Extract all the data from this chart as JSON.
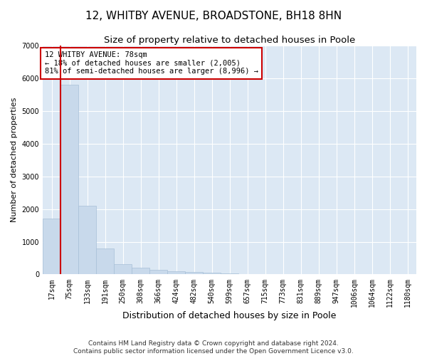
{
  "title1": "12, WHITBY AVENUE, BROADSTONE, BH18 8HN",
  "title2": "Size of property relative to detached houses in Poole",
  "xlabel": "Distribution of detached houses by size in Poole",
  "ylabel": "Number of detached properties",
  "bar_color": "#c8d9eb",
  "bar_edge_color": "#a8c0d8",
  "vline_color": "#cc0000",
  "vline_x": 0.5,
  "categories": [
    "17sqm",
    "75sqm",
    "133sqm",
    "191sqm",
    "250sqm",
    "308sqm",
    "366sqm",
    "424sqm",
    "482sqm",
    "540sqm",
    "599sqm",
    "657sqm",
    "715sqm",
    "773sqm",
    "831sqm",
    "889sqm",
    "947sqm",
    "1006sqm",
    "1064sqm",
    "1122sqm",
    "1180sqm"
  ],
  "values": [
    1700,
    5800,
    2100,
    800,
    320,
    200,
    130,
    100,
    70,
    50,
    30,
    20,
    15,
    5,
    3,
    2,
    1,
    1,
    0,
    0,
    0
  ],
  "ylim": [
    0,
    7000
  ],
  "yticks": [
    0,
    1000,
    2000,
    3000,
    4000,
    5000,
    6000,
    7000
  ],
  "annotation_line1": "12 WHITBY AVENUE: 78sqm",
  "annotation_line2": "← 18% of detached houses are smaller (2,005)",
  "annotation_line3": "81% of semi-detached houses are larger (8,996) →",
  "footer1": "Contains HM Land Registry data © Crown copyright and database right 2024.",
  "footer2": "Contains public sector information licensed under the Open Government Licence v3.0.",
  "fig_bg_color": "#ffffff",
  "plot_bg_color": "#dce8f4",
  "grid_color": "#ffffff",
  "title1_fontsize": 11,
  "title2_fontsize": 9.5,
  "xlabel_fontsize": 9,
  "ylabel_fontsize": 8,
  "tick_fontsize": 7,
  "annot_fontsize": 7.5,
  "footer_fontsize": 6.5
}
